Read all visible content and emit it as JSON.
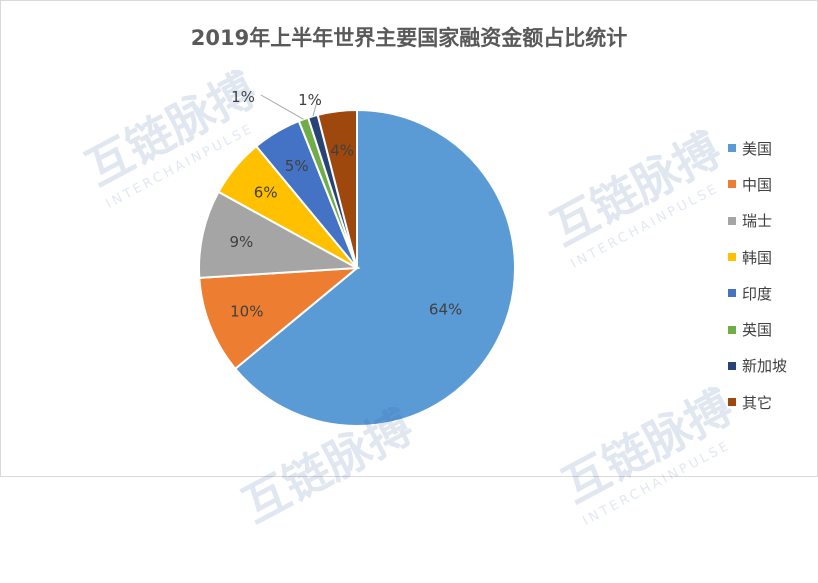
{
  "chart_data": {
    "type": "pie",
    "title": "2019年上半年世界主要国家融资金额占比统计",
    "categories": [
      "美国",
      "中国",
      "瑞士",
      "韩国",
      "印度",
      "英国",
      "新加坡",
      "其它"
    ],
    "values": [
      64,
      10,
      9,
      6,
      5,
      1,
      1,
      4
    ],
    "labels": [
      "64%",
      "10%",
      "9%",
      "6%",
      "5%",
      "1%",
      "1%",
      "4%"
    ],
    "colors": [
      "#5b9bd5",
      "#ed7d31",
      "#a5a5a5",
      "#ffc000",
      "#4472c4",
      "#70ad47",
      "#264478",
      "#9e480e"
    ],
    "legend_position": "right",
    "start_angle_deg": 0,
    "direction": "clockwise"
  },
  "watermark": {
    "brand_cn": "互链脉搏",
    "brand_en": "INTERCHAINPULSE"
  }
}
